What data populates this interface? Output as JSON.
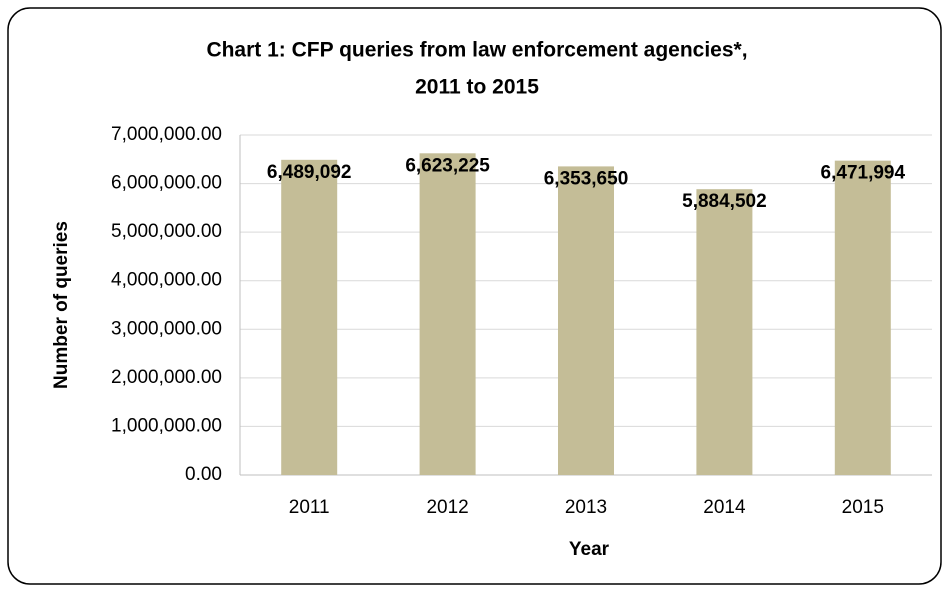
{
  "chart_data": {
    "type": "bar",
    "title": [
      "Chart 1: CFP queries from law enforcement agencies*,",
      "2011 to 2015"
    ],
    "x_label": "Year",
    "y_label": "Number of queries",
    "categories": [
      "2011",
      "2012",
      "2013",
      "2014",
      "2015"
    ],
    "values": [
      6489092,
      6623225,
      6353650,
      5884502,
      6471994
    ],
    "value_labels": [
      "6,489,092",
      "6,623,225",
      "6,353,650",
      "5,884,502",
      "6,471,994"
    ],
    "color": "#c4bd97",
    "ylim": [
      0,
      7000000
    ],
    "yticks": [
      {
        "value": 0,
        "label": "0.00"
      },
      {
        "value": 1000000,
        "label": "1,000,000.00"
      },
      {
        "value": 2000000,
        "label": "2,000,000.00"
      },
      {
        "value": 3000000,
        "label": "3,000,000.00"
      },
      {
        "value": 4000000,
        "label": "4,000,000.00"
      },
      {
        "value": 5000000,
        "label": "5,000,000.00"
      },
      {
        "value": 6000000,
        "label": "6,000,000.00"
      },
      {
        "value": 7000000,
        "label": "7,000,000.00"
      }
    ],
    "grid": true
  }
}
